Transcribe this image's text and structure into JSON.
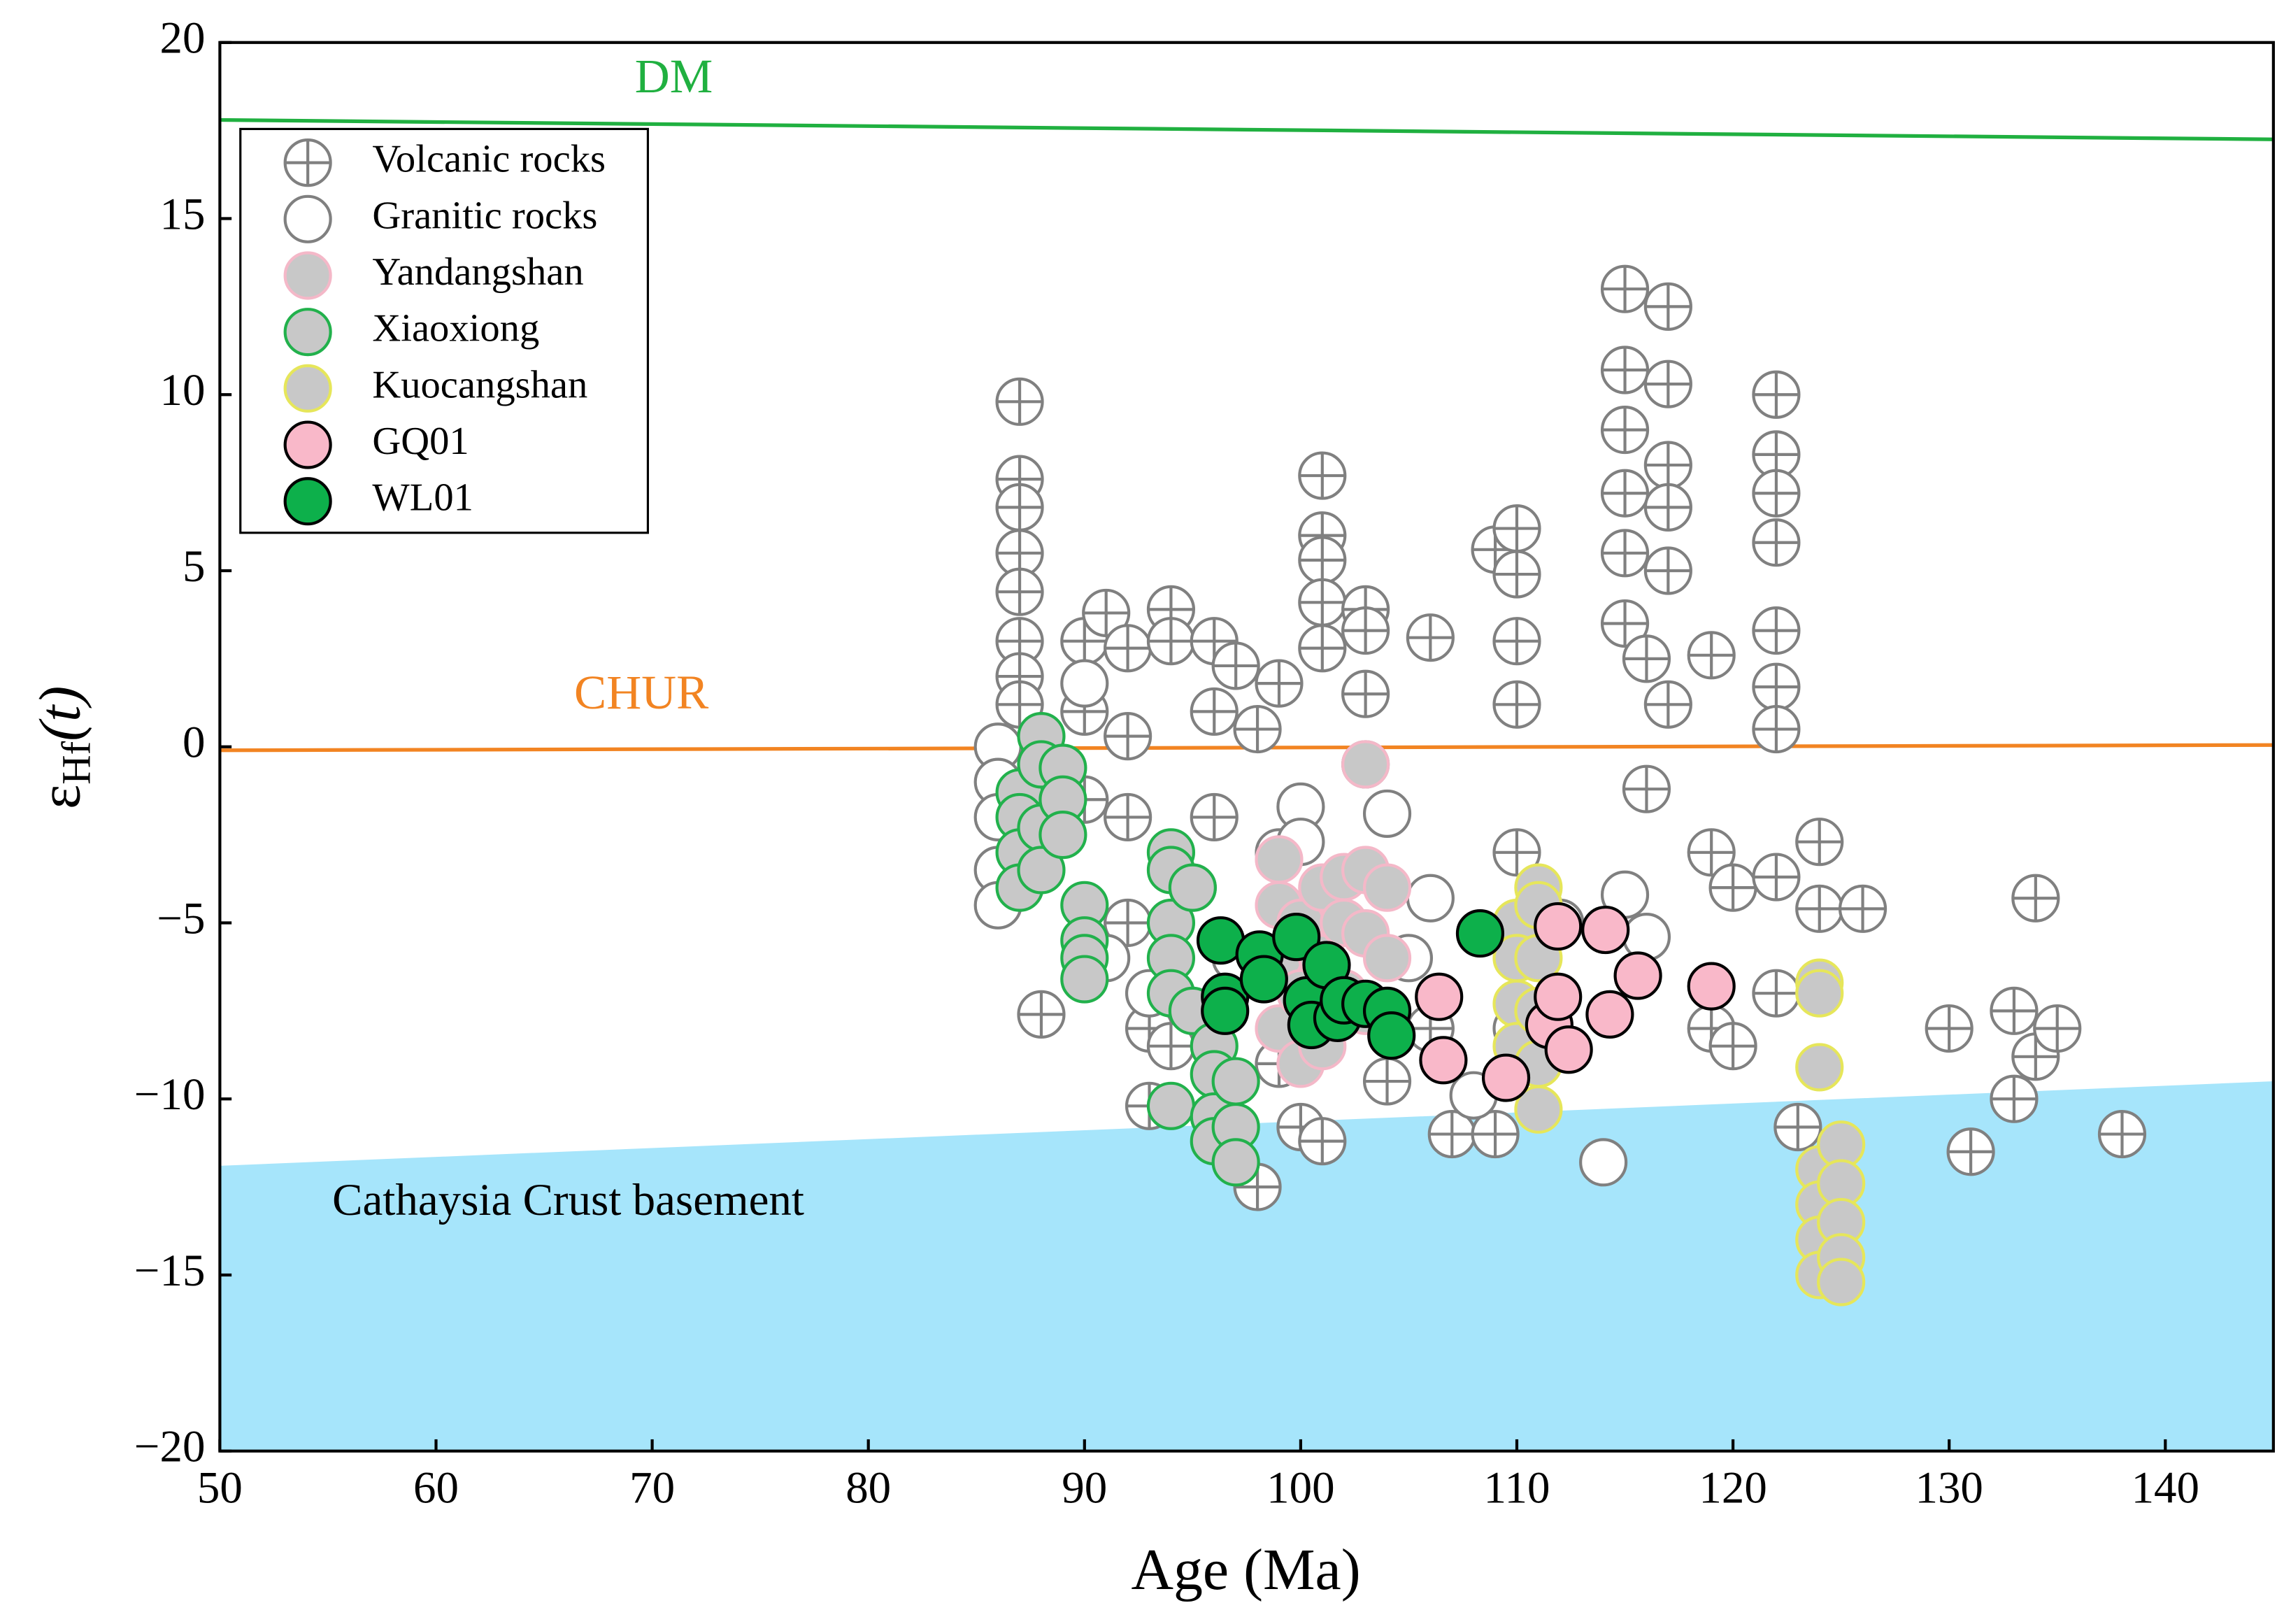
{
  "chart_data": {
    "type": "scatter",
    "xlabel": "Age (Ma)",
    "ylabel": [
      "ε",
      "Hf",
      "(t)"
    ],
    "xlim": [
      50,
      145
    ],
    "ylim": [
      -20,
      20
    ],
    "xticks": [
      50,
      60,
      70,
      80,
      90,
      100,
      110,
      120,
      130,
      140
    ],
    "yticks": [
      {
        "value": -20,
        "label": "−20"
      },
      {
        "value": -15,
        "label": "−15"
      },
      {
        "value": -10,
        "label": "−10"
      },
      {
        "value": -5,
        "label": "−5"
      },
      0,
      5,
      10,
      15,
      20
    ],
    "legend": "upper left",
    "references": [
      {
        "type": "area",
        "name": "Cathaysia Crust basement",
        "color": "#a6e5fb",
        "x": [
          50,
          145
        ],
        "values": [
          -11.9,
          -9.5
        ]
      },
      {
        "type": "line",
        "name": "DM",
        "color": "#20b040",
        "x": [
          50,
          145
        ],
        "values": [
          17.8,
          17.25
        ]
      },
      {
        "type": "line",
        "name": "CHUR",
        "color": "#f28422",
        "x": [
          50,
          145
        ],
        "values": [
          -0.1,
          0.05
        ]
      }
    ],
    "series": [
      {
        "name": "Volcanic rocks",
        "marker": "plus",
        "color": "#ffffff",
        "edgecolor": "#808080",
        "x": [
          87,
          87,
          87,
          87,
          87,
          87,
          87,
          87,
          88,
          90,
          90,
          90,
          91,
          92,
          92,
          92,
          92,
          93,
          93,
          94,
          94,
          94,
          96,
          96,
          96,
          97,
          98,
          98,
          99,
          99,
          100,
          101,
          101,
          101,
          101,
          101,
          101,
          103,
          103,
          103,
          103,
          104,
          106,
          106,
          107,
          109,
          109,
          110,
          110,
          110,
          110,
          110,
          112,
          115,
          115,
          115,
          115,
          115,
          115,
          116,
          116,
          117,
          117,
          117,
          117,
          117,
          117,
          119,
          119,
          119,
          120,
          120,
          122,
          122,
          122,
          122,
          122,
          122,
          122,
          122,
          122,
          123,
          124,
          124,
          126,
          130,
          131,
          133,
          133,
          134,
          134,
          135,
          138
        ],
        "values": [
          9.8,
          7.6,
          6.8,
          5.5,
          4.4,
          3.0,
          2.0,
          1.2,
          -7.6,
          3.0,
          1.0,
          -1.5,
          3.8,
          2.8,
          0.3,
          -2,
          -5,
          -8,
          -10.2,
          3.9,
          3.0,
          -8.5,
          3.0,
          1.0,
          -2,
          2.3,
          -12.5,
          0.5,
          1.8,
          -9,
          -10.8,
          7.7,
          6.0,
          5.3,
          4.1,
          2.8,
          -11.2,
          3.9,
          3.3,
          1.5,
          -0.5,
          -9.5,
          3.1,
          -8,
          -11,
          5.6,
          -11,
          6.2,
          4.9,
          3.0,
          1.2,
          -3,
          -5,
          13,
          10.7,
          9,
          7.2,
          5.5,
          3.5,
          2.5,
          -1.2,
          12.5,
          10.3,
          8,
          6.8,
          5,
          1.2,
          2.6,
          -3,
          -8,
          -8.5,
          -4,
          10,
          8.3,
          7.2,
          5.8,
          3.3,
          1.7,
          0.5,
          -3.7,
          -7,
          -10.8,
          -2.7,
          -4.6,
          -4.6,
          -8,
          -11.5,
          -7.5,
          -10,
          -4.3,
          -8.8,
          -8,
          -11
        ]
      },
      {
        "name": "Granitic rocks",
        "marker": "open",
        "color": "#ffffff",
        "edgecolor": "#808080",
        "x": [
          86,
          86,
          86,
          86,
          86,
          90,
          91,
          93,
          95,
          99,
          100,
          100,
          104,
          106,
          108,
          114,
          115,
          116,
          97,
          105,
          110
        ],
        "values": [
          0,
          -1,
          -2,
          -3.5,
          -4.5,
          1.8,
          -6,
          -7,
          -4,
          -3,
          -1.7,
          -2.7,
          -1.9,
          -4.3,
          -9.9,
          -11.8,
          -4.2,
          -5.4,
          -6,
          -6,
          -8
        ]
      },
      {
        "name": "Yandangshan",
        "marker": "filled",
        "color": "#c8c8c8",
        "edgecolor": "#f4b8c8",
        "x": [
          99,
          99,
          99,
          99,
          100,
          100,
          100,
          101,
          101,
          101,
          102,
          102,
          102,
          103,
          103,
          103,
          103,
          104,
          104
        ],
        "values": [
          -3.2,
          -4.5,
          -6,
          -8,
          -5,
          -7,
          -9,
          -4,
          -6,
          -8.5,
          -3.7,
          -5,
          -7,
          -0.5,
          -3.5,
          -5.3,
          -7.5,
          -4,
          -6
        ]
      },
      {
        "name": "Xiaoxiong",
        "marker": "filled",
        "color": "#c8c8c8",
        "edgecolor": "#22b14c",
        "x": [
          87,
          87,
          87,
          87,
          88,
          88,
          88,
          88,
          89,
          89,
          89,
          90,
          90,
          90,
          90,
          94,
          94,
          94,
          94,
          94,
          94,
          95,
          95,
          96,
          96,
          96,
          96,
          97,
          97,
          97
        ],
        "values": [
          -1.3,
          -2,
          -3,
          -4,
          0.3,
          -0.5,
          -2.3,
          -3.5,
          -0.6,
          -1.5,
          -2.5,
          -4.5,
          -5.5,
          -6,
          -6.6,
          -3,
          -3.5,
          -5,
          -6,
          -7,
          -10.2,
          -4,
          -7.5,
          -8.5,
          -9.3,
          -10.5,
          -11.2,
          -9.5,
          -10.8,
          -11.8
        ]
      },
      {
        "name": "Kuocangshan",
        "marker": "filled",
        "color": "#c8c8c8",
        "edgecolor": "#e6e65a",
        "x": [
          110,
          110,
          110,
          110,
          111,
          111,
          111,
          111,
          111,
          111,
          124,
          124,
          124,
          124,
          124,
          124,
          124,
          125,
          125,
          125,
          125,
          125
        ],
        "values": [
          -5,
          -6,
          -7.3,
          -8.5,
          -4,
          -4.5,
          -6,
          -7.5,
          -9,
          -10.3,
          -6.7,
          -7,
          -9.1,
          -12,
          -13,
          -14,
          -15,
          -11.3,
          -12.4,
          -13.5,
          -14.5,
          -15.2
        ]
      },
      {
        "name": "GQ01",
        "marker": "filled",
        "color": "#f9b8c9",
        "edgecolor": "#000000",
        "x": [
          106.4,
          106.6,
          109.5,
          111.5,
          111.9,
          111.9,
          112.4,
          114.1,
          114.3,
          115.6,
          119
        ],
        "values": [
          -7.1,
          -8.9,
          -9.4,
          -7.9,
          -5.1,
          -7.1,
          -8.6,
          -5.2,
          -7.6,
          -6.5,
          -6.8
        ]
      },
      {
        "name": "WL01",
        "marker": "filled",
        "color": "#0db04b",
        "edgecolor": "#000000",
        "x": [
          96.3,
          96.5,
          96.5,
          98.1,
          98.3,
          99.8,
          100.3,
          100.5,
          101.2,
          101.7,
          102,
          103,
          104,
          104.2,
          108.3
        ],
        "values": [
          -5.5,
          -7.1,
          -7.5,
          -5.9,
          -6.6,
          -5.4,
          -7.2,
          -7.9,
          -6.2,
          -7.7,
          -7.2,
          -7.3,
          -7.5,
          -8.2,
          -5.3
        ]
      }
    ]
  }
}
